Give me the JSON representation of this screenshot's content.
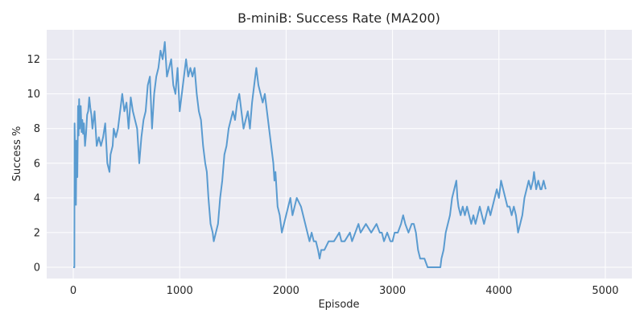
{
  "chart_data": {
    "type": "line",
    "title": "B-miniB: Success Rate (MA200)",
    "xlabel": "Episode",
    "ylabel": "Success %",
    "xlim": [
      -250,
      5250
    ],
    "ylim": [
      -0.65,
      13.7
    ],
    "xticks": [
      0,
      1000,
      2000,
      3000,
      4000,
      5000
    ],
    "yticks": [
      0,
      2,
      4,
      6,
      8,
      10,
      12
    ],
    "grid": true,
    "style": "seaborn-darkgrid",
    "colors": {
      "plot_bg": "#eaeaf2",
      "grid": "#ffffff",
      "line": "#5a9bd0"
    },
    "series": [
      {
        "points": [
          [
            0,
            0
          ],
          [
            10,
            0
          ],
          [
            12,
            8.3
          ],
          [
            20,
            5.8
          ],
          [
            25,
            3.6
          ],
          [
            30,
            7.3
          ],
          [
            38,
            5.2
          ],
          [
            45,
            9.3
          ],
          [
            50,
            7.6
          ],
          [
            55,
            9.7
          ],
          [
            60,
            8.0
          ],
          [
            70,
            9.3
          ],
          [
            78,
            7.8
          ],
          [
            85,
            8.5
          ],
          [
            92,
            7.7
          ],
          [
            100,
            8.3
          ],
          [
            110,
            7.0
          ],
          [
            120,
            7.7
          ],
          [
            130,
            8.8
          ],
          [
            140,
            9.0
          ],
          [
            150,
            9.8
          ],
          [
            160,
            9.2
          ],
          [
            170,
            8.8
          ],
          [
            180,
            8.0
          ],
          [
            190,
            8.5
          ],
          [
            200,
            9.0
          ],
          [
            210,
            8.0
          ],
          [
            220,
            7.0
          ],
          [
            240,
            7.5
          ],
          [
            260,
            7.0
          ],
          [
            280,
            7.5
          ],
          [
            300,
            8.3
          ],
          [
            320,
            6.0
          ],
          [
            340,
            5.5
          ],
          [
            350,
            6.5
          ],
          [
            370,
            7.0
          ],
          [
            380,
            8.0
          ],
          [
            400,
            7.5
          ],
          [
            420,
            8.0
          ],
          [
            440,
            9.0
          ],
          [
            460,
            10.0
          ],
          [
            480,
            9.0
          ],
          [
            500,
            9.5
          ],
          [
            520,
            8.0
          ],
          [
            540,
            9.8
          ],
          [
            560,
            9.0
          ],
          [
            580,
            8.5
          ],
          [
            600,
            8.0
          ],
          [
            620,
            6.0
          ],
          [
            640,
            7.5
          ],
          [
            660,
            8.5
          ],
          [
            680,
            9.0
          ],
          [
            700,
            10.5
          ],
          [
            720,
            11.0
          ],
          [
            740,
            8.0
          ],
          [
            760,
            10.0
          ],
          [
            780,
            11.0
          ],
          [
            800,
            11.5
          ],
          [
            820,
            12.5
          ],
          [
            840,
            12.0
          ],
          [
            860,
            13.0
          ],
          [
            880,
            11.0
          ],
          [
            900,
            11.5
          ],
          [
            920,
            12.0
          ],
          [
            940,
            10.5
          ],
          [
            960,
            10.0
          ],
          [
            980,
            11.5
          ],
          [
            1000,
            9.0
          ],
          [
            1020,
            10.0
          ],
          [
            1040,
            11.0
          ],
          [
            1060,
            12.0
          ],
          [
            1080,
            11.0
          ],
          [
            1100,
            11.5
          ],
          [
            1120,
            11.0
          ],
          [
            1140,
            11.5
          ],
          [
            1160,
            10.0
          ],
          [
            1180,
            9.0
          ],
          [
            1200,
            8.5
          ],
          [
            1220,
            7.0
          ],
          [
            1240,
            6.0
          ],
          [
            1255,
            5.5
          ],
          [
            1270,
            4.0
          ],
          [
            1290,
            2.5
          ],
          [
            1310,
            2.0
          ],
          [
            1320,
            1.5
          ],
          [
            1340,
            2.0
          ],
          [
            1360,
            2.5
          ],
          [
            1380,
            4.0
          ],
          [
            1400,
            5.0
          ],
          [
            1420,
            6.5
          ],
          [
            1440,
            7.0
          ],
          [
            1460,
            8.0
          ],
          [
            1480,
            8.5
          ],
          [
            1500,
            9.0
          ],
          [
            1520,
            8.5
          ],
          [
            1540,
            9.5
          ],
          [
            1560,
            10.0
          ],
          [
            1580,
            9.0
          ],
          [
            1600,
            8.0
          ],
          [
            1620,
            8.5
          ],
          [
            1640,
            9.0
          ],
          [
            1660,
            8.0
          ],
          [
            1680,
            9.5
          ],
          [
            1700,
            10.5
          ],
          [
            1720,
            11.5
          ],
          [
            1740,
            10.5
          ],
          [
            1760,
            10.0
          ],
          [
            1780,
            9.5
          ],
          [
            1800,
            10.0
          ],
          [
            1820,
            9.0
          ],
          [
            1840,
            8.0
          ],
          [
            1860,
            7.0
          ],
          [
            1880,
            6.0
          ],
          [
            1890,
            5.0
          ],
          [
            1900,
            5.5
          ],
          [
            1910,
            4.5
          ],
          [
            1920,
            3.5
          ],
          [
            1940,
            3.0
          ],
          [
            1950,
            2.5
          ],
          [
            1960,
            2.0
          ],
          [
            1980,
            2.5
          ],
          [
            2000,
            3.0
          ],
          [
            2020,
            3.5
          ],
          [
            2040,
            4.0
          ],
          [
            2060,
            3.0
          ],
          [
            2080,
            3.5
          ],
          [
            2100,
            4.0
          ],
          [
            2140,
            3.5
          ],
          [
            2160,
            3.0
          ],
          [
            2180,
            2.5
          ],
          [
            2200,
            2.0
          ],
          [
            2220,
            1.5
          ],
          [
            2240,
            2.0
          ],
          [
            2260,
            1.5
          ],
          [
            2280,
            1.5
          ],
          [
            2300,
            1.0
          ],
          [
            2315,
            0.5
          ],
          [
            2330,
            1.0
          ],
          [
            2360,
            1.0
          ],
          [
            2400,
            1.5
          ],
          [
            2450,
            1.5
          ],
          [
            2500,
            2.0
          ],
          [
            2520,
            1.5
          ],
          [
            2550,
            1.5
          ],
          [
            2600,
            2.0
          ],
          [
            2620,
            1.5
          ],
          [
            2650,
            2.0
          ],
          [
            2680,
            2.5
          ],
          [
            2700,
            2.0
          ],
          [
            2750,
            2.5
          ],
          [
            2800,
            2.0
          ],
          [
            2850,
            2.5
          ],
          [
            2880,
            2.0
          ],
          [
            2900,
            2.0
          ],
          [
            2920,
            1.5
          ],
          [
            2950,
            2.0
          ],
          [
            2980,
            1.5
          ],
          [
            3000,
            1.5
          ],
          [
            3020,
            2.0
          ],
          [
            3050,
            2.0
          ],
          [
            3080,
            2.5
          ],
          [
            3100,
            3.0
          ],
          [
            3120,
            2.5
          ],
          [
            3150,
            2.0
          ],
          [
            3180,
            2.5
          ],
          [
            3200,
            2.5
          ],
          [
            3220,
            2.0
          ],
          [
            3240,
            1.0
          ],
          [
            3260,
            0.5
          ],
          [
            3300,
            0.5
          ],
          [
            3330,
            0.0
          ],
          [
            3400,
            0.0
          ],
          [
            3450,
            0.0
          ],
          [
            3460,
            0.5
          ],
          [
            3480,
            1.0
          ],
          [
            3500,
            2.0
          ],
          [
            3520,
            2.5
          ],
          [
            3540,
            3.0
          ],
          [
            3560,
            4.0
          ],
          [
            3580,
            4.5
          ],
          [
            3600,
            5.0
          ],
          [
            3610,
            4.0
          ],
          [
            3620,
            3.5
          ],
          [
            3640,
            3.0
          ],
          [
            3660,
            3.5
          ],
          [
            3680,
            3.0
          ],
          [
            3700,
            3.5
          ],
          [
            3720,
            3.0
          ],
          [
            3740,
            2.5
          ],
          [
            3760,
            3.0
          ],
          [
            3780,
            2.5
          ],
          [
            3800,
            3.0
          ],
          [
            3820,
            3.5
          ],
          [
            3840,
            3.0
          ],
          [
            3860,
            2.5
          ],
          [
            3880,
            3.0
          ],
          [
            3900,
            3.5
          ],
          [
            3920,
            3.0
          ],
          [
            3940,
            3.5
          ],
          [
            3960,
            4.0
          ],
          [
            3980,
            4.5
          ],
          [
            4000,
            4.0
          ],
          [
            4020,
            5.0
          ],
          [
            4040,
            4.5
          ],
          [
            4060,
            4.0
          ],
          [
            4080,
            3.5
          ],
          [
            4100,
            3.5
          ],
          [
            4120,
            3.0
          ],
          [
            4140,
            3.5
          ],
          [
            4160,
            3.0
          ],
          [
            4180,
            2.0
          ],
          [
            4200,
            2.5
          ],
          [
            4220,
            3.0
          ],
          [
            4240,
            4.0
          ],
          [
            4260,
            4.5
          ],
          [
            4280,
            5.0
          ],
          [
            4300,
            4.5
          ],
          [
            4320,
            5.0
          ],
          [
            4330,
            5.5
          ],
          [
            4350,
            4.5
          ],
          [
            4370,
            5.0
          ],
          [
            4390,
            4.5
          ],
          [
            4400,
            4.5
          ],
          [
            4420,
            5.0
          ],
          [
            4440,
            4.5
          ]
        ]
      }
    ]
  }
}
